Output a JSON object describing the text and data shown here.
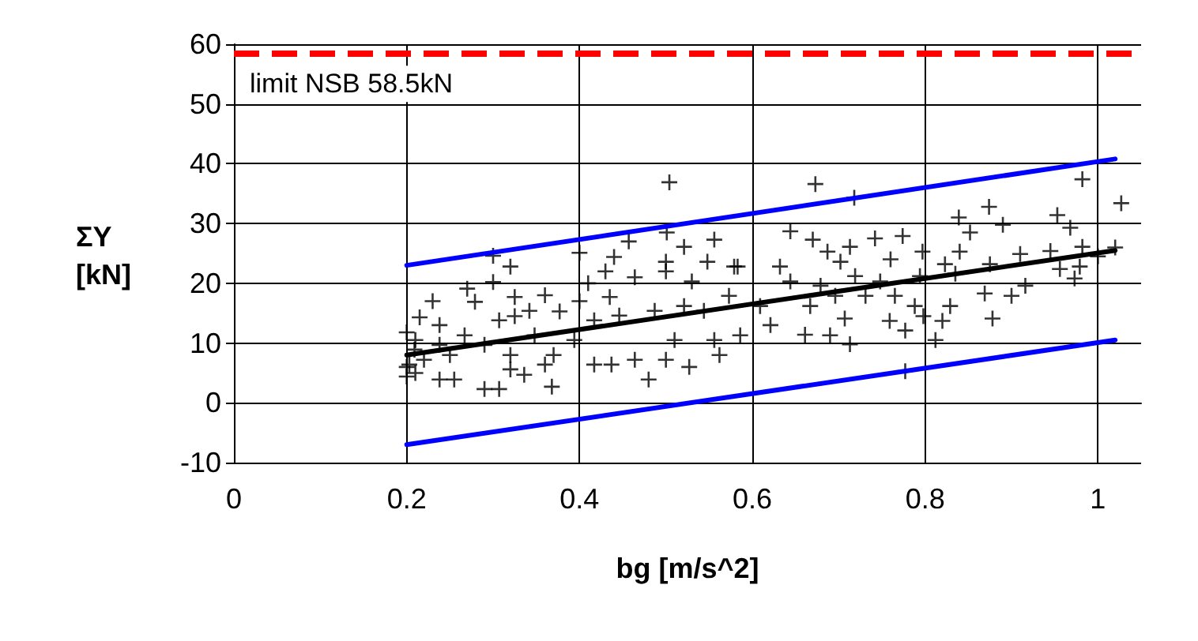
{
  "chart_data": {
    "type": "scatter",
    "xlabel": "bg [m/s^2]",
    "ylabel": "ΣY [kN]",
    "xlim": [
      0,
      1.05
    ],
    "xticks": [
      0,
      0.2,
      0.4,
      0.6,
      0.8,
      1
    ],
    "ylim": [
      -10,
      60
    ],
    "yticks": [
      -10,
      0,
      10,
      20,
      30,
      40,
      50,
      60
    ],
    "grid": true,
    "ref_lines": [
      {
        "axis": "y",
        "value": 58.5,
        "label": "limit NSB 58.5kN",
        "color": "#ff0000",
        "line_style": "dashed"
      }
    ],
    "series": [
      {
        "marker": "cross",
        "color": "#000000",
        "x": [
          0.504,
          0.501,
          0.3,
          0.32,
          0.4,
          0.457,
          0.44,
          0.3,
          0.23,
          0.27,
          0.215,
          0.2,
          0.209,
          0.2,
          0.238,
          0.238,
          0.255,
          0.29,
          0.307,
          0.279,
          0.325,
          0.325,
          0.36,
          0.348,
          0.32,
          0.32,
          0.336,
          0.368,
          0.377,
          0.4,
          0.41,
          0.43,
          0.464,
          0.5,
          0.5,
          0.48,
          0.437,
          0.417,
          0.464,
          0.5,
          0.527,
          0.51,
          0.446,
          0.417,
          0.394,
          0.37,
          0.29,
          0.267,
          0.25,
          0.22,
          0.21,
          0.203,
          0.238,
          0.342,
          0.307,
          0.36,
          0.521,
          0.556,
          0.53,
          0.548,
          0.573,
          0.579,
          0.544,
          0.556,
          0.562,
          0.521,
          0.487,
          0.435,
          0.673,
          0.718,
          0.982,
          0.644,
          0.67,
          0.742,
          0.774,
          0.839,
          0.874,
          0.89,
          0.852,
          0.953,
          0.968,
          0.982,
          0.945,
          0.91,
          0.84,
          0.797,
          0.713,
          0.687,
          0.583,
          0.632,
          0.702,
          0.76,
          0.823,
          0.875,
          0.956,
          0.973,
          0.916,
          0.9,
          0.869,
          0.835,
          0.794,
          0.748,
          0.719,
          0.679,
          0.644,
          0.609,
          0.667,
          0.696,
          0.731,
          0.765,
          0.788,
          0.829,
          0.707,
          0.759,
          0.798,
          0.82,
          0.812,
          0.878,
          0.777,
          0.661,
          0.69,
          0.713,
          0.621,
          0.586,
          0.777,
          0.979,
          1.027,
          1.0,
          1.02,
          0.2,
          0.21
        ],
        "values": [
          36.9,
          28.5,
          24.6,
          22.8,
          25.1,
          27.0,
          24.4,
          20.2,
          17.0,
          19.1,
          14.3,
          11.8,
          8.9,
          4.4,
          13.0,
          3.9,
          3.9,
          2.3,
          2.3,
          16.9,
          17.7,
          14.5,
          18.0,
          11.3,
          8.0,
          5.6,
          4.7,
          2.7,
          15.3,
          17.0,
          20.0,
          22.0,
          21.0,
          22.0,
          23.6,
          3.9,
          6.4,
          6.4,
          7.2,
          7.2,
          6.0,
          10.5,
          14.6,
          13.8,
          10.5,
          8.0,
          9.7,
          11.3,
          8.0,
          7.2,
          10.5,
          6.4,
          9.7,
          15.4,
          13.8,
          6.4,
          26.1,
          27.3,
          20.3,
          23.6,
          17.9,
          22.8,
          15.4,
          10.5,
          8.0,
          16.2,
          15.4,
          17.7,
          36.6,
          34.3,
          37.4,
          28.7,
          27.3,
          27.5,
          27.9,
          31.0,
          32.8,
          29.8,
          28.5,
          31.4,
          29.3,
          26.1,
          25.4,
          24.9,
          25.3,
          25.3,
          26.1,
          25.3,
          22.8,
          22.8,
          23.6,
          24.0,
          23.2,
          23.2,
          22.4,
          20.8,
          19.6,
          17.9,
          18.3,
          21.6,
          21.2,
          20.3,
          21.2,
          19.6,
          20.3,
          16.2,
          16.2,
          17.9,
          17.9,
          17.9,
          16.2,
          16.2,
          14.1,
          13.7,
          14.5,
          13.7,
          10.5,
          14.1,
          12.1,
          11.4,
          11.3,
          9.8,
          13.0,
          11.3,
          5.3,
          22.8,
          33.4,
          24.5,
          26.0,
          6.0,
          5.0
        ]
      },
      {
        "type": "line",
        "marker": "none",
        "color": "#0000ff",
        "x": [
          0.2,
          1.02
        ],
        "values": [
          23,
          40.8
        ]
      },
      {
        "type": "line",
        "marker": "none",
        "color": "#0000ff",
        "x": [
          0.2,
          1.02
        ],
        "values": [
          -7,
          10.5
        ]
      },
      {
        "type": "line",
        "marker": "none",
        "color": "#000000",
        "x": [
          0.2,
          1.02
        ],
        "values": [
          8,
          25.5
        ]
      }
    ]
  }
}
